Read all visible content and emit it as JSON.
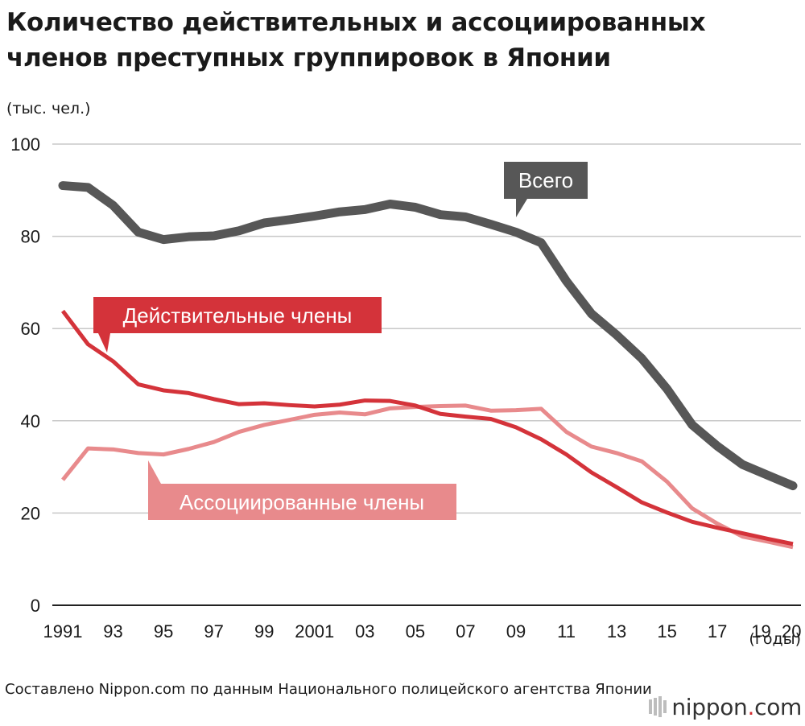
{
  "title": "Количество действительных и ассоциированных членов преступных группировок в Японии",
  "unit_label": "(тыс. чел.)",
  "source": "Составлено Nippon.com по данным Национального полицейского агентства Японии",
  "logo": {
    "name": "nippon",
    "dot": ".",
    "tld": "com",
    "icon": "nippon-logo-mark"
  },
  "colors": {
    "total": "#575757",
    "regular": "#d4333a",
    "associate": "#e88a8c",
    "grid": "#c8c8c8",
    "axis": "#222222"
  },
  "chart_data": {
    "type": "line",
    "x": [
      1991,
      1992,
      1993,
      1994,
      1995,
      1996,
      1997,
      1998,
      1999,
      2000,
      2001,
      2002,
      2003,
      2004,
      2005,
      2006,
      2007,
      2008,
      2009,
      2010,
      2011,
      2012,
      2013,
      2014,
      2015,
      2016,
      2017,
      2018,
      2019,
      2020
    ],
    "x_tick_labels": [
      {
        "year": 1991,
        "label": "1991"
      },
      {
        "year": 1993,
        "label": "93"
      },
      {
        "year": 1995,
        "label": "95"
      },
      {
        "year": 1997,
        "label": "97"
      },
      {
        "year": 1999,
        "label": "99"
      },
      {
        "year": 2001,
        "label": "2001"
      },
      {
        "year": 2003,
        "label": "03"
      },
      {
        "year": 2005,
        "label": "05"
      },
      {
        "year": 2007,
        "label": "07"
      },
      {
        "year": 2009,
        "label": "09"
      },
      {
        "year": 2011,
        "label": "11"
      },
      {
        "year": 2013,
        "label": "13"
      },
      {
        "year": 2015,
        "label": "15"
      },
      {
        "year": 2017,
        "label": "17"
      },
      {
        "year": 2019,
        "label": "19"
      },
      {
        "year": 2020,
        "label": "20"
      }
    ],
    "xlabel": "(годы)",
    "ylabel": "(тыс. чел.)",
    "ylim": [
      0,
      100
    ],
    "y_ticks": [
      0,
      20,
      40,
      60,
      80,
      100
    ],
    "grid": true,
    "series": [
      {
        "key": "total",
        "name": "Всего",
        "values": [
          91.0,
          90.6,
          86.7,
          80.9,
          79.3,
          79.9,
          80.1,
          81.2,
          82.9,
          83.6,
          84.4,
          85.3,
          85.8,
          87.0,
          86.3,
          84.7,
          84.2,
          82.6,
          80.9,
          78.6,
          70.3,
          63.2,
          58.6,
          53.5,
          46.9,
          39.1,
          34.5,
          30.5,
          28.2,
          25.9
        ],
        "label_anchor": {
          "year": 2009,
          "value": 80.9
        }
      },
      {
        "key": "regular",
        "name": "Действительные члены",
        "values": [
          63.8,
          56.6,
          52.9,
          47.9,
          46.6,
          46.0,
          44.7,
          43.6,
          43.8,
          43.4,
          43.1,
          43.5,
          44.4,
          44.3,
          43.3,
          41.5,
          40.9,
          40.4,
          38.6,
          36.0,
          32.7,
          28.8,
          25.6,
          22.3,
          20.1,
          18.1,
          16.8,
          15.6,
          14.4,
          13.3
        ],
        "label_anchor": {
          "year": 1993,
          "value": 52.9
        }
      },
      {
        "key": "associate",
        "name": "Ассоциированные члены",
        "values": [
          27.2,
          34.0,
          33.8,
          33.0,
          32.7,
          33.9,
          35.4,
          37.6,
          39.1,
          40.2,
          41.3,
          41.8,
          41.4,
          42.7,
          43.0,
          43.2,
          43.3,
          42.2,
          42.3,
          42.6,
          37.6,
          34.4,
          33.0,
          31.2,
          26.8,
          21.0,
          17.7,
          14.9,
          13.8,
          12.6
        ],
        "label_anchor": {
          "year": 1995,
          "value": 32.7
        }
      }
    ]
  }
}
